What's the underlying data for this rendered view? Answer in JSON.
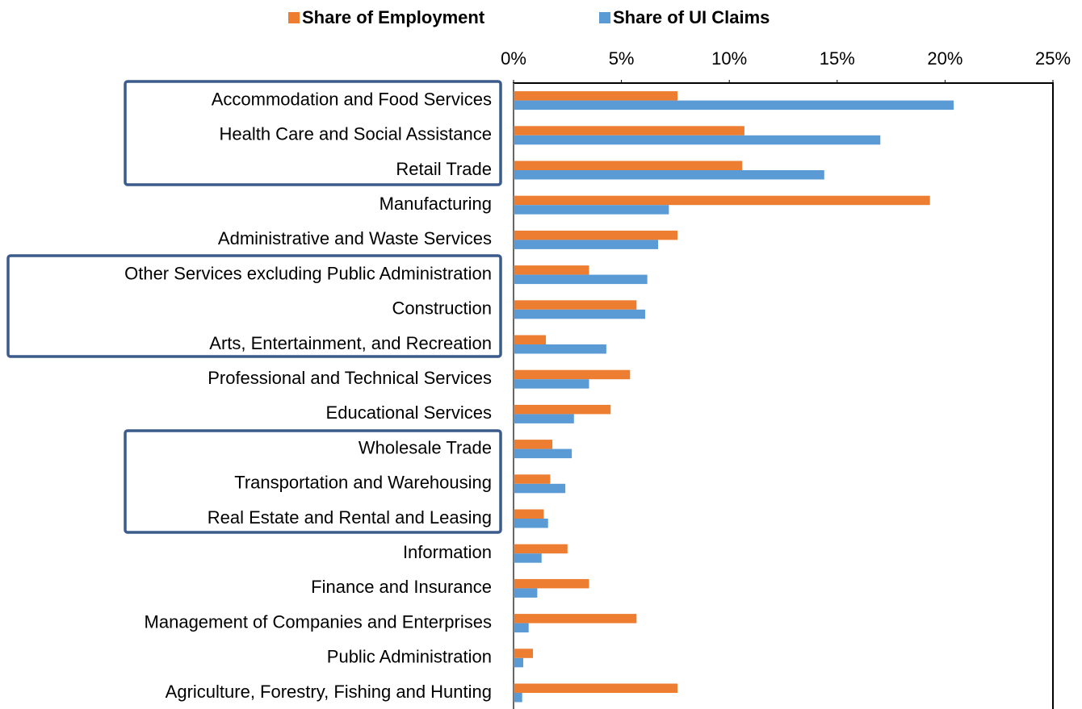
{
  "chart_data": {
    "type": "hbar",
    "categories": [
      "Accommodation and Food Services",
      "Health Care and Social Assistance",
      "Retail Trade",
      "Manufacturing",
      "Administrative and Waste Services",
      "Other Services excluding Public Administration",
      "Construction",
      "Arts, Entertainment, and Recreation",
      "Professional and Technical Services",
      "Educational Services",
      "Wholesale Trade",
      "Transportation and Warehousing",
      "Real Estate and Rental and Leasing",
      "Information",
      "Finance and Insurance",
      "Management of Companies and Enterprises",
      "Public Administration",
      "Agriculture, Forestry, Fishing and Hunting"
    ],
    "series": [
      {
        "name": "Share of Employment",
        "color": "#ED7D31",
        "values": [
          7.6,
          10.7,
          10.6,
          19.3,
          7.6,
          3.5,
          5.7,
          1.5,
          5.4,
          4.5,
          1.8,
          1.7,
          1.4,
          2.5,
          3.5,
          5.7,
          0.9,
          7.6
        ]
      },
      {
        "name": "Share of UI Claims",
        "color": "#5B9BD5",
        "values": [
          20.4,
          17.0,
          14.4,
          7.2,
          6.7,
          6.2,
          6.1,
          4.3,
          3.5,
          2.8,
          2.7,
          2.4,
          1.6,
          1.3,
          1.1,
          0.7,
          0.45,
          0.4
        ]
      }
    ],
    "xlim": [
      0,
      25
    ],
    "xticks": [
      {
        "value": 0,
        "label": "0%"
      },
      {
        "value": 5,
        "label": "5%"
      },
      {
        "value": 10,
        "label": "10%"
      },
      {
        "value": 15,
        "label": "15%"
      },
      {
        "value": 20,
        "label": "20%"
      },
      {
        "value": 25,
        "label": "25%"
      }
    ],
    "legend": "top"
  }
}
